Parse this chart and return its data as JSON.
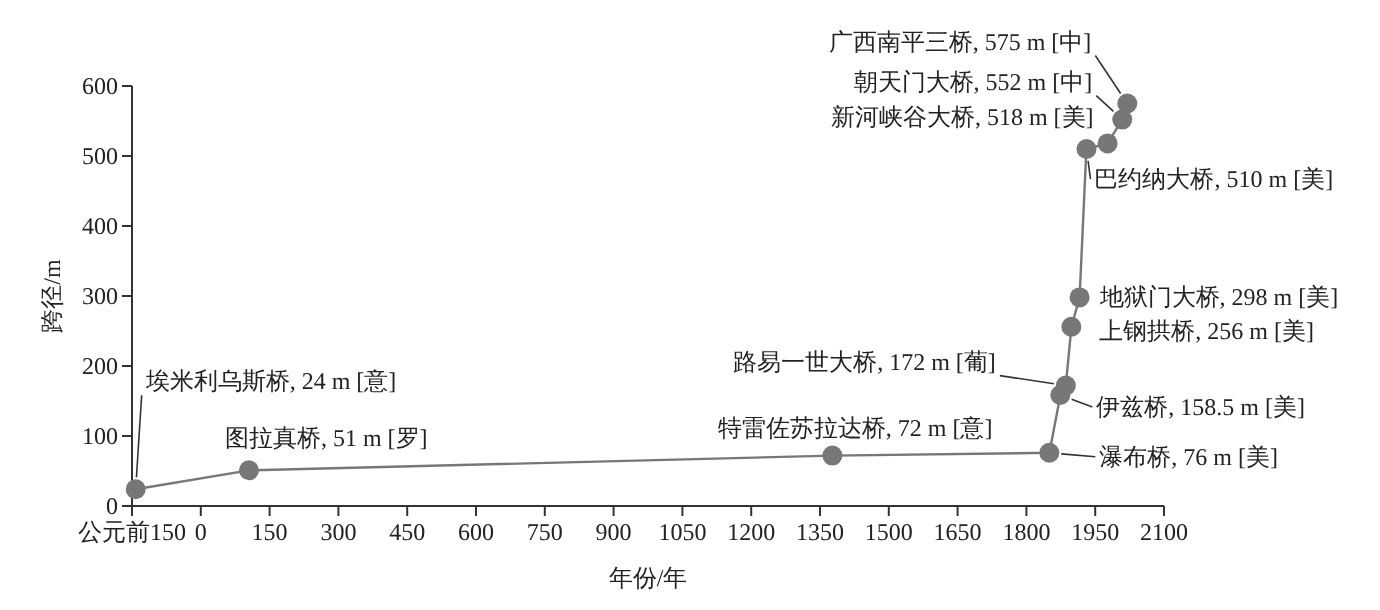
{
  "chart_data": {
    "type": "line",
    "xlabel": "年份/年",
    "ylabel": "跨径/m",
    "x": [
      -142,
      105,
      1377,
      1850,
      1874,
      1886,
      1898,
      1916,
      1931,
      1977,
      2009,
      2020
    ],
    "series": [
      {
        "color": "#777777",
        "values": [
          24,
          51,
          72,
          76,
          158.5,
          172,
          256,
          298,
          510,
          518,
          552,
          575
        ]
      }
    ],
    "marker": "circle",
    "xlim": [
      -150,
      2100
    ],
    "xticks": [
      {
        "value": -150,
        "label": "公元前150"
      },
      0,
      150,
      300,
      450,
      600,
      750,
      900,
      1050,
      1200,
      1350,
      1500,
      1650,
      1800,
      1950,
      2100
    ],
    "ylim": [
      0,
      600
    ],
    "yticks": [
      0,
      100,
      200,
      300,
      400,
      500,
      600
    ],
    "grid": false,
    "annotations": [
      {
        "text": "埃米利乌斯桥, 24 m [意]",
        "x": -142,
        "y": 24
      },
      {
        "text": "图拉真桥, 51 m [罗]",
        "x": 105,
        "y": 51
      },
      {
        "text": "特雷佐苏拉达桥, 72 m [意]",
        "x": 1377,
        "y": 72
      },
      {
        "text": "瀑布桥, 76 m [美]",
        "x": 1850,
        "y": 76
      },
      {
        "text": "伊兹桥, 158.5 m [美]",
        "x": 1874,
        "y": 158.5
      },
      {
        "text": "路易一世大桥, 172 m [葡]",
        "x": 1886,
        "y": 172
      },
      {
        "text": "上钢拱桥, 256 m [美]",
        "x": 1898,
        "y": 256
      },
      {
        "text": "地狱门大桥, 298 m [美]",
        "x": 1916,
        "y": 298
      },
      {
        "text": "巴约纳大桥, 510 m [美]",
        "x": 1931,
        "y": 510
      },
      {
        "text": "新河峡谷大桥, 518 m [美]",
        "x": 1977,
        "y": 518
      },
      {
        "text": "朝天门大桥, 552 m [中]",
        "x": 2009,
        "y": 552
      },
      {
        "text": "广西南平三桥, 575 m [中]",
        "x": 2020,
        "y": 575
      }
    ]
  }
}
